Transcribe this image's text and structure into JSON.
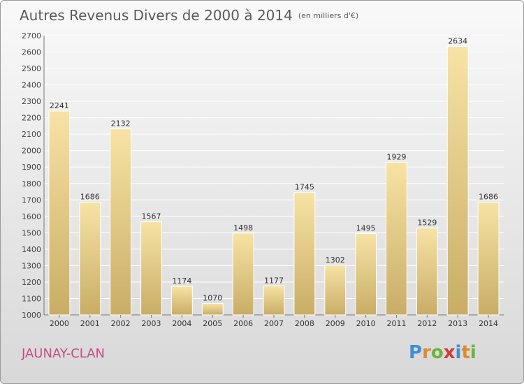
{
  "title": "Autres Revenus Divers de 2000 à 2014",
  "unit": "(en milliers d'€)",
  "location": "JAUNAY-CLAN",
  "brand": "Proxiti",
  "colors": {
    "bar_top": "#f7e3a5",
    "bar_bottom": "#c9ad66",
    "grid": "#ffffff",
    "title": "#5a5a5a",
    "location": "#c74b83"
  },
  "chart_data": {
    "type": "bar",
    "categories": [
      "2000",
      "2001",
      "2002",
      "2003",
      "2004",
      "2005",
      "2006",
      "2007",
      "2008",
      "2009",
      "2010",
      "2011",
      "2012",
      "2013",
      "2014"
    ],
    "values": [
      2241,
      1686,
      2132,
      1567,
      1174,
      1070,
      1498,
      1177,
      1745,
      1302,
      1495,
      1929,
      1529,
      2634,
      1686
    ],
    "ylim": [
      1000,
      2700
    ],
    "yticks": [
      1000,
      1100,
      1200,
      1300,
      1400,
      1500,
      1600,
      1700,
      1800,
      1900,
      2000,
      2100,
      2200,
      2300,
      2400,
      2500,
      2600,
      2700
    ],
    "grid": true,
    "data_labels": true
  }
}
